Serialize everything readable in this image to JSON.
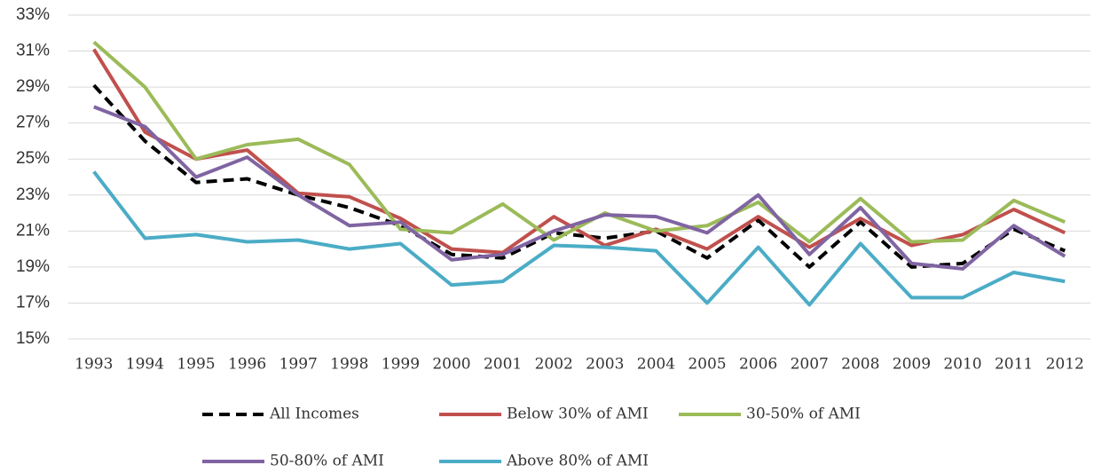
{
  "chart_data": {
    "type": "line",
    "categories": [
      "1993",
      "1994",
      "1995",
      "1996",
      "1997",
      "1998",
      "1999",
      "2000",
      "2001",
      "2002",
      "2003",
      "2004",
      "2005",
      "2006",
      "2007",
      "2008",
      "2009",
      "2010",
      "2011",
      "2012"
    ],
    "series": [
      {
        "name": "All Incomes",
        "color": "#000000",
        "style": "dashed",
        "values": [
          29.1,
          26.0,
          23.7,
          23.9,
          23.0,
          22.3,
          21.3,
          19.7,
          19.5,
          20.9,
          20.6,
          21.0,
          19.5,
          21.6,
          19.0,
          21.5,
          19.0,
          19.2,
          21.1,
          19.9
        ]
      },
      {
        "name": "Below 30% of AMI",
        "color": "#c0504d",
        "values": [
          31.1,
          26.5,
          25.0,
          25.5,
          23.1,
          22.9,
          21.7,
          20.0,
          19.8,
          21.8,
          20.2,
          21.1,
          20.0,
          21.8,
          20.1,
          21.7,
          20.2,
          20.8,
          22.2,
          20.9
        ]
      },
      {
        "name": "30-50% of AMI",
        "color": "#9bbb59",
        "values": [
          31.5,
          29.0,
          25.0,
          25.8,
          26.1,
          24.7,
          21.1,
          20.9,
          22.5,
          20.5,
          22.0,
          21.0,
          21.3,
          22.6,
          20.4,
          22.8,
          20.4,
          20.5,
          22.7,
          21.5
        ]
      },
      {
        "name": "50-80% of AMI",
        "color": "#8064a2",
        "values": [
          27.9,
          26.8,
          24.0,
          25.1,
          23.0,
          21.3,
          21.5,
          19.4,
          19.7,
          21.0,
          21.9,
          21.8,
          20.9,
          23.0,
          19.7,
          22.3,
          19.2,
          18.9,
          21.3,
          19.6
        ]
      },
      {
        "name": "Above 80% of AMI",
        "color": "#4bacc6",
        "values": [
          24.3,
          20.6,
          20.8,
          20.4,
          20.5,
          20.0,
          20.3,
          18.0,
          18.2,
          20.2,
          20.1,
          19.9,
          17.0,
          20.1,
          16.9,
          20.3,
          17.3,
          17.3,
          18.7,
          18.2
        ]
      }
    ],
    "ylim": [
      15,
      33
    ],
    "yticks": [
      {
        "value": 15,
        "label": "15%"
      },
      {
        "value": 17,
        "label": "17%"
      },
      {
        "value": 19,
        "label": "19%"
      },
      {
        "value": 21,
        "label": "21%"
      },
      {
        "value": 23,
        "label": "23%"
      },
      {
        "value": 25,
        "label": "25%"
      },
      {
        "value": 27,
        "label": "27%"
      },
      {
        "value": 29,
        "label": "29%"
      },
      {
        "value": 31,
        "label": "31%"
      },
      {
        "value": 33,
        "label": "33%"
      }
    ],
    "grid": true,
    "legend": "bottom"
  }
}
